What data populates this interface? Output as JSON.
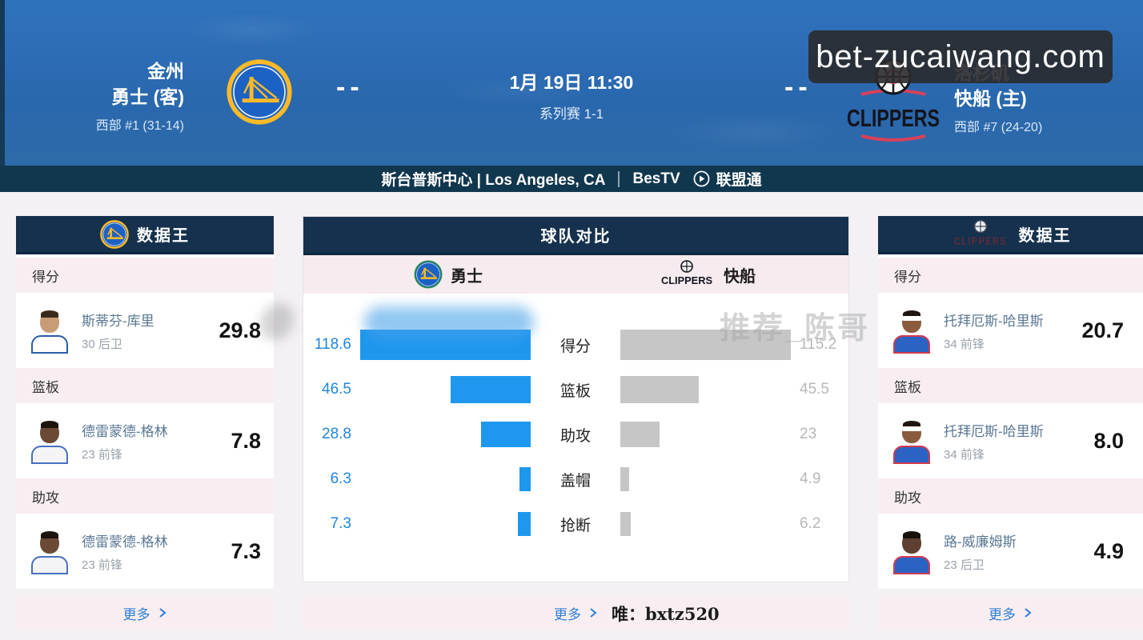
{
  "watermark": {
    "site": "bet-zucaiwang.com"
  },
  "header": {
    "away": {
      "city": "金州",
      "name": "勇士 (客)",
      "rank": "西部 #1 (31-14)",
      "score": "--"
    },
    "home": {
      "city": "洛杉矶",
      "name": "快船 (主)",
      "rank": "西部 #7 (24-20)",
      "score": "--",
      "logo_text": "CLIPPERS"
    },
    "datetime": "1月 19日 11:30",
    "series": "系列赛 1-1"
  },
  "infobar": {
    "venue": "斯台普斯中心 | Los Angeles, CA",
    "tv": "BesTV",
    "stream": "联盟通"
  },
  "left_panel": {
    "title": "数据王",
    "sections": [
      {
        "label": "得分",
        "player": "斯蒂芬-库里",
        "meta": "30 后卫",
        "value": "29.8",
        "avatar": {
          "skin": "#c89c76",
          "hair": "#3a2a1c",
          "jersey": "#ffffff",
          "trim": "#2a5caa",
          "headband": false
        }
      },
      {
        "label": "篮板",
        "player": "德雷蒙德-格林",
        "meta": "23 前锋",
        "value": "7.8",
        "avatar": {
          "skin": "#6b4a35",
          "hair": "#1d140d",
          "jersey": "#f4f4f6",
          "trim": "#4a6fc0",
          "headband": false
        }
      },
      {
        "label": "助攻",
        "player": "德雷蒙德-格林",
        "meta": "23 前锋",
        "value": "7.3",
        "avatar": {
          "skin": "#6b4a35",
          "hair": "#1d140d",
          "jersey": "#f4f4f6",
          "trim": "#4a6fc0",
          "headband": false
        }
      }
    ],
    "more": "更多"
  },
  "compare_panel": {
    "title": "球队对比",
    "left_team": "勇士",
    "right_team": "快船",
    "right_team_logo_text": "CLIPPERS",
    "faint_watermark": "推荐_陈哥",
    "more": "更多",
    "promo": "唯：bxtz520"
  },
  "right_panel": {
    "title": "数据王",
    "logo_text": "CLIPPERS",
    "sections": [
      {
        "label": "得分",
        "player": "托拜厄斯-哈里斯",
        "meta": "34 前锋",
        "value": "20.7",
        "avatar": {
          "skin": "#8a5c3e",
          "hair": "#201510",
          "jersey": "#2a63c4",
          "trim": "#d23b4e",
          "headband": true
        }
      },
      {
        "label": "篮板",
        "player": "托拜厄斯-哈里斯",
        "meta": "34 前锋",
        "value": "8.0",
        "avatar": {
          "skin": "#8a5c3e",
          "hair": "#201510",
          "jersey": "#2a63c4",
          "trim": "#d23b4e",
          "headband": true
        }
      },
      {
        "label": "助攻",
        "player": "路-威廉姆斯",
        "meta": "23 后卫",
        "value": "4.9",
        "avatar": {
          "skin": "#5f4030",
          "hair": "#15100b",
          "jersey": "#2a63c4",
          "trim": "#d23b4e",
          "headband": false
        }
      }
    ],
    "more": "更多"
  },
  "chart_data": {
    "type": "bar",
    "orientation": "horizontal-mirrored",
    "categories": [
      "得分",
      "篮板",
      "助攻",
      "盖帽",
      "抢断"
    ],
    "series": [
      {
        "name": "勇士",
        "values": [
          118.6,
          46.5,
          28.8,
          6.3,
          7.3
        ],
        "color": "#1e97ee"
      },
      {
        "name": "快船",
        "values": [
          115.2,
          45.5,
          23,
          4.9,
          6.2
        ],
        "color": "#c6c6c6"
      }
    ],
    "value_label_colors": {
      "left": "#1f86dd",
      "right": "#b8b8b8"
    },
    "legend_position": "top"
  },
  "colors": {
    "hero_blue": "#2a6ab4",
    "infobar_navy": "#11374f",
    "panel_header_navy": "#15314e",
    "row_pink": "#f8eef2",
    "more_blue": "#2e7fd6",
    "warriors_gold": "#fdb927",
    "warriors_blue": "#1b62c4",
    "clippers_red": "#d6415a"
  }
}
